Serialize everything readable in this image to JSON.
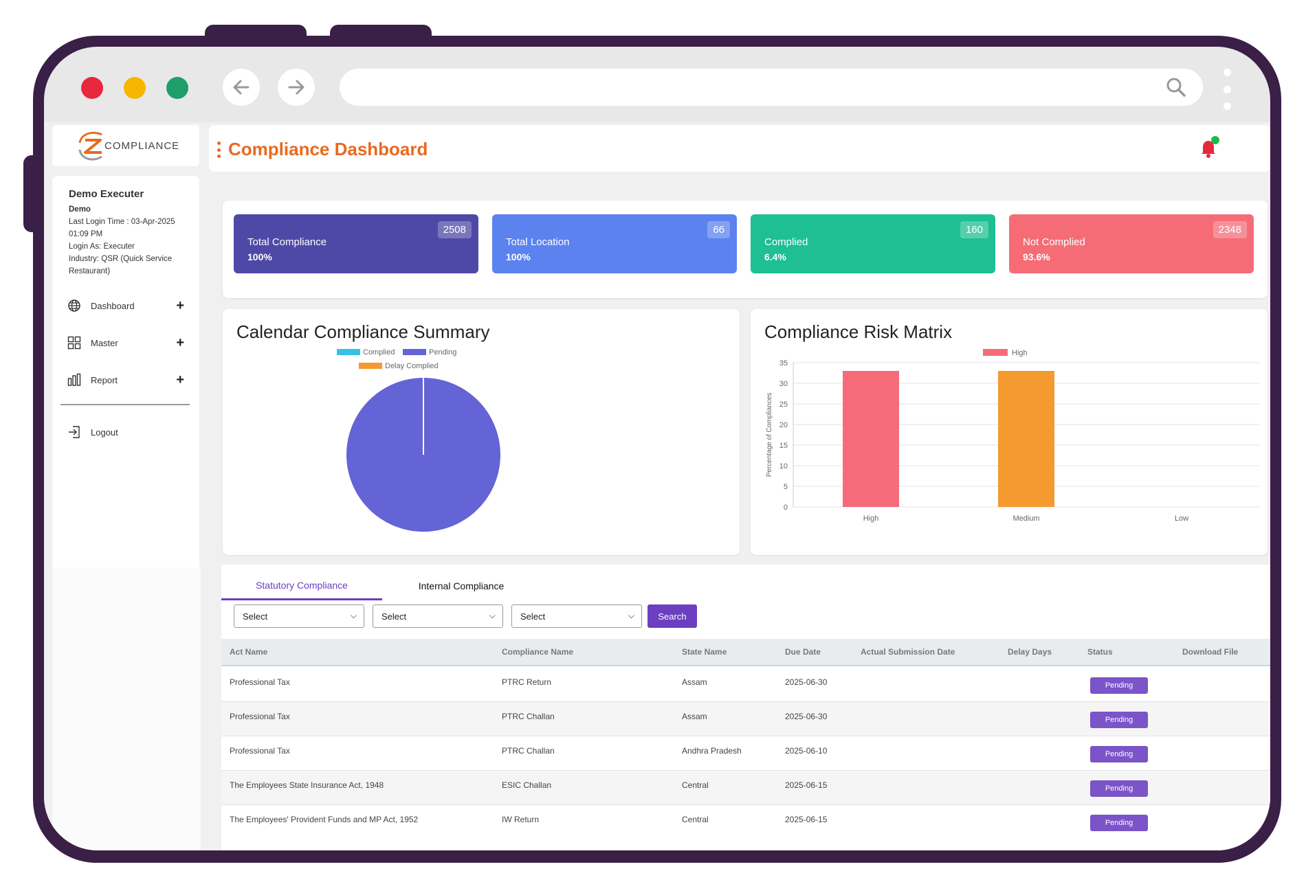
{
  "header": {
    "title": "Compliance Dashboard"
  },
  "logo": {
    "text": "COMPLIANCE"
  },
  "user": {
    "name": "Demo Executer",
    "short": "Demo",
    "last_login": "Last Login Time : 03-Apr-2025 01:09 PM",
    "login_as": "Login As: Executer",
    "industry": "Industry: QSR (Quick Service Restaurant)"
  },
  "sidebar": {
    "items": [
      {
        "label": "Dashboard",
        "icon": "globe-icon"
      },
      {
        "label": "Master",
        "icon": "grid-icon"
      },
      {
        "label": "Report",
        "icon": "bar-chart-icon"
      }
    ],
    "logout": "Logout"
  },
  "stats": [
    {
      "title": "Total Compliance",
      "percent": "100%",
      "count": "2508",
      "color": "#4e49a6"
    },
    {
      "title": "Total Location",
      "percent": "100%",
      "count": "66",
      "color": "#5b82ef"
    },
    {
      "title": "Complied",
      "percent": "6.4%",
      "count": "160",
      "color": "#1dbf93"
    },
    {
      "title": "Not Complied",
      "percent": "93.6%",
      "count": "2348",
      "color": "#f56c77"
    }
  ],
  "chart_data": [
    {
      "type": "pie",
      "title": "Calendar Compliance Summary",
      "legend": [
        "Complied",
        "Pending",
        "Delay Complied"
      ],
      "colors": [
        "#36c2e3",
        "#6464d6",
        "#f49a2e"
      ],
      "values": [
        0,
        100,
        0
      ]
    },
    {
      "type": "bar",
      "title": "Compliance Risk Matrix",
      "legend": [
        "High"
      ],
      "categories": [
        "High",
        "Medium",
        "Low"
      ],
      "values": [
        33,
        33,
        0
      ],
      "colors": [
        "#f56b79",
        "#f49a2e",
        "#cccccc"
      ],
      "ylabel": "Percentage of Compliances",
      "ylim": [
        0,
        35
      ],
      "yticks": [
        0,
        5,
        10,
        15,
        20,
        25,
        30,
        35
      ]
    }
  ],
  "tabs": {
    "statutory": "Statutory Compliance",
    "internal": "Internal Compliance"
  },
  "filters": {
    "select1": "Select",
    "select2": "Select",
    "select3": "Select",
    "search": "Search"
  },
  "table": {
    "headers": [
      "Act Name",
      "Compliance Name",
      "State Name",
      "Due Date",
      "Actual Submission Date",
      "Delay Days",
      "Status",
      "Download File"
    ],
    "rows": [
      {
        "act": "Professional Tax",
        "name": "PTRC Return",
        "state": "Assam",
        "due": "2025-06-30",
        "status": "Pending"
      },
      {
        "act": "Professional Tax",
        "name": "PTRC Challan",
        "state": "Assam",
        "due": "2025-06-30",
        "status": "Pending"
      },
      {
        "act": "Professional Tax",
        "name": "PTRC Challan",
        "state": "Andhra Pradesh",
        "due": "2025-06-10",
        "status": "Pending"
      },
      {
        "act": "The Employees State Insurance Act, 1948",
        "name": "ESIC Challan",
        "state": "Central",
        "due": "2025-06-15",
        "status": "Pending"
      },
      {
        "act": "The Employees' Provident Funds and MP Act, 1952",
        "name": "IW Return",
        "state": "Central",
        "due": "2025-06-15",
        "status": "Pending"
      }
    ]
  }
}
